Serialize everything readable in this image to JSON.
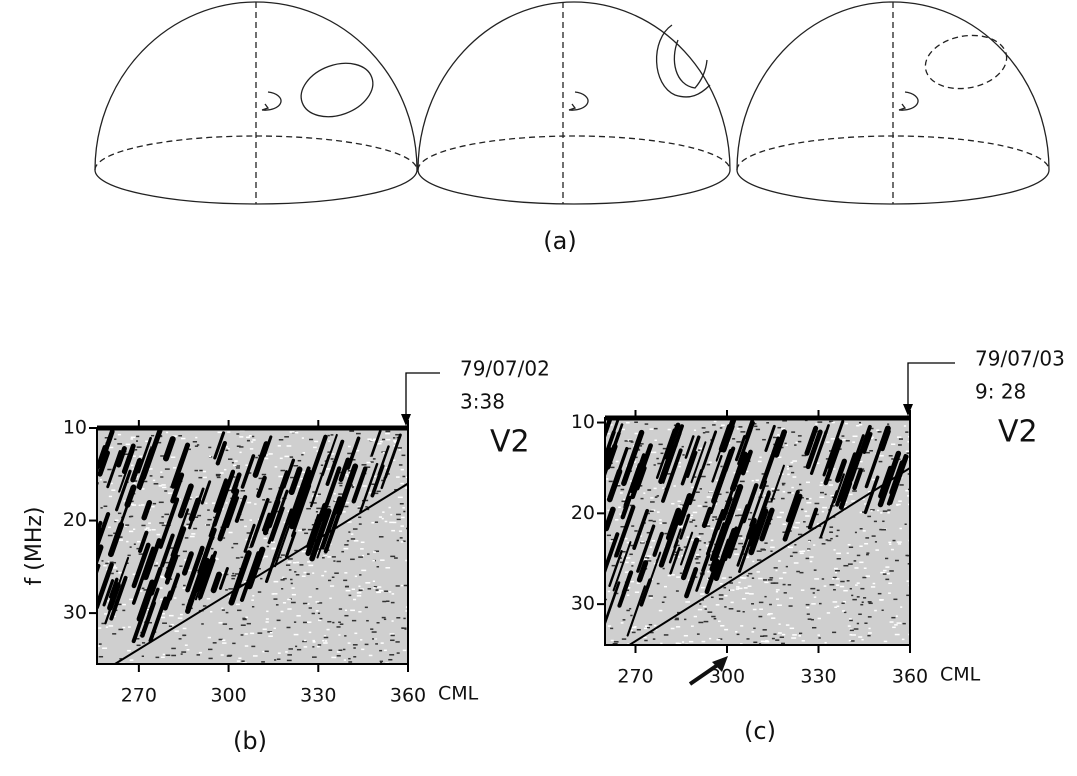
{
  "figure": {
    "panel_a": {
      "label": "(a)"
    },
    "panels": [
      {
        "label": "(b)",
        "date": "79/07/02",
        "time": "3:38",
        "spacecraft": "V2",
        "y_axis_label": "f (MHz)",
        "x_axis_label": "CML",
        "xticks": [
          270,
          300,
          330,
          360
        ],
        "yticks": [
          10,
          20,
          30
        ],
        "xlim": [
          256,
          360
        ],
        "ylim": [
          10,
          35.5
        ]
      },
      {
        "label": "(c)",
        "date": "79/07/03",
        "time": "9: 28",
        "spacecraft": "V2",
        "x_axis_label": "CML",
        "xticks": [
          270,
          300,
          330,
          360
        ],
        "yticks": [
          10,
          20,
          30
        ],
        "xlim": [
          260,
          360
        ],
        "ylim": [
          9.5,
          34.5
        ]
      }
    ]
  }
}
